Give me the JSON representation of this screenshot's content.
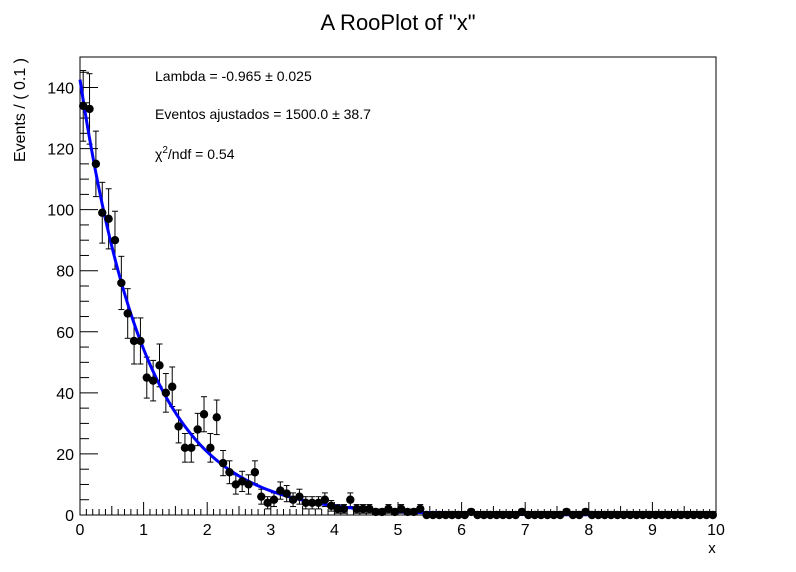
{
  "chart_data": {
    "type": "scatter",
    "title": "A RooPlot of \"x\"",
    "xlabel": "x",
    "ylabel": "Events / ( 0.1 )",
    "xlim": [
      0,
      10
    ],
    "ylim": [
      0,
      150
    ],
    "grid": false,
    "x_ticks": [
      0,
      1,
      2,
      3,
      4,
      5,
      6,
      7,
      8,
      9,
      10
    ],
    "y_ticks": [
      0,
      20,
      40,
      60,
      80,
      100,
      120,
      140
    ],
    "annotations": {
      "lambda": "Lambda = -0.965 ± 0.025",
      "events": "Eventos ajustados = 1500.0 ± 38.7",
      "chi2_base": "χ",
      "chi2_sup": "2",
      "chi2_rest": "/ndf = 0.54"
    },
    "series": [
      {
        "kind": "data",
        "color": "#000000",
        "x": [
          0.05,
          0.15,
          0.25,
          0.35,
          0.45,
          0.55,
          0.65,
          0.75,
          0.85,
          0.95,
          1.05,
          1.15,
          1.25,
          1.35,
          1.45,
          1.55,
          1.65,
          1.75,
          1.85,
          1.95,
          2.05,
          2.15,
          2.25,
          2.35,
          2.45,
          2.55,
          2.65,
          2.75,
          2.85,
          2.95,
          3.05,
          3.15,
          3.25,
          3.35,
          3.45,
          3.55,
          3.65,
          3.75,
          3.85,
          3.95,
          4.05,
          4.15,
          4.25,
          4.35,
          4.45,
          4.55,
          4.65,
          4.75,
          4.85,
          4.95,
          5.05,
          5.15,
          5.25,
          5.35,
          5.45,
          5.55,
          5.65,
          5.75,
          5.85,
          5.95,
          6.05,
          6.15,
          6.25,
          6.35,
          6.45,
          6.55,
          6.65,
          6.75,
          6.85,
          6.95,
          7.05,
          7.15,
          7.25,
          7.35,
          7.45,
          7.55,
          7.65,
          7.75,
          7.85,
          7.95,
          8.05,
          8.15,
          8.25,
          8.35,
          8.45,
          8.55,
          8.65,
          8.75,
          8.85,
          8.95,
          9.05,
          9.15,
          9.25,
          9.35,
          9.45,
          9.55,
          9.65,
          9.75,
          9.85,
          9.95
        ],
        "y": [
          134,
          133,
          115,
          99,
          97,
          90,
          76,
          66,
          57,
          57,
          45,
          44,
          49,
          40,
          42,
          29,
          22,
          22,
          28,
          33,
          22,
          32,
          17,
          14,
          10,
          11,
          10,
          14,
          6,
          4,
          5,
          8,
          7,
          5,
          6,
          4,
          4,
          4,
          5,
          3,
          2,
          2,
          5,
          2,
          2,
          2,
          1,
          1,
          2,
          1,
          2,
          1,
          1,
          2,
          0,
          0,
          0,
          0,
          0,
          0,
          0,
          1,
          0,
          0,
          0,
          0,
          0,
          0,
          0,
          1,
          0,
          0,
          0,
          0,
          0,
          0,
          1,
          0,
          0,
          1,
          0,
          0,
          0,
          0,
          0,
          0,
          0,
          0,
          0,
          0,
          0,
          0,
          0,
          0,
          0,
          0,
          0,
          0,
          0,
          0
        ]
      },
      {
        "kind": "fit",
        "color": "#0000ff",
        "function": "exponential",
        "amplitude": 142.6,
        "lambda": -0.965
      }
    ]
  }
}
